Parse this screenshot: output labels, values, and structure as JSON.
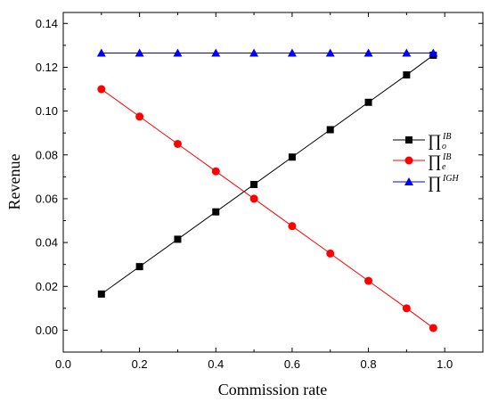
{
  "chart_data": {
    "type": "line",
    "xlabel": "Commission rate",
    "ylabel": "Revenue",
    "xlim": [
      0.0,
      1.1
    ],
    "ylim": [
      -0.01,
      0.145
    ],
    "x_ticks": [
      0.0,
      0.2,
      0.4,
      0.6,
      0.8,
      1.0
    ],
    "x_tick_labels": [
      "0.0",
      "0.2",
      "0.4",
      "0.6",
      "0.8",
      "1.0"
    ],
    "y_ticks": [
      0.0,
      0.02,
      0.04,
      0.06,
      0.08,
      0.1,
      0.12,
      0.14
    ],
    "y_tick_labels": [
      "0.00",
      "0.02",
      "0.04",
      "0.06",
      "0.08",
      "0.10",
      "0.12",
      "0.14"
    ],
    "grid": false,
    "legend_position": "center-right",
    "x": [
      0.1,
      0.2,
      0.3,
      0.4,
      0.5,
      0.6,
      0.7,
      0.8,
      0.9,
      0.97
    ],
    "series": [
      {
        "name": "Π_o^IB",
        "legend": {
          "base": "∏",
          "sub": "o",
          "sup": "IB"
        },
        "color": "#000000",
        "marker": "square",
        "values": [
          0.0165,
          0.029,
          0.0415,
          0.054,
          0.0665,
          0.079,
          0.0915,
          0.104,
          0.1165,
          0.1255
        ]
      },
      {
        "name": "Π_e^IB",
        "legend": {
          "base": "∏",
          "sub": "e",
          "sup": "IB"
        },
        "color": "#ff0000",
        "marker": "circle",
        "values": [
          0.11,
          0.0975,
          0.085,
          0.0725,
          0.06,
          0.0475,
          0.035,
          0.0225,
          0.01,
          0.001
        ]
      },
      {
        "name": "Π^IGH",
        "legend": {
          "base": "∏",
          "sub": "",
          "sup": "IGH"
        },
        "color": "#0000ff",
        "marker": "triangle",
        "values": [
          0.1265,
          0.1265,
          0.1265,
          0.1265,
          0.1265,
          0.1265,
          0.1265,
          0.1265,
          0.1265,
          0.1265
        ]
      }
    ]
  }
}
